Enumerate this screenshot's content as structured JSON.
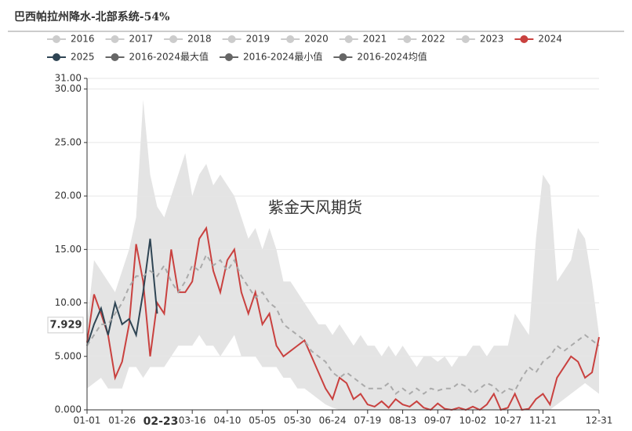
{
  "chart_data": {
    "type": "line",
    "title": "巴西帕拉州降水-北部系统-54%",
    "watermark": "紫金天风期货",
    "legend_inactive": [
      "2016",
      "2017",
      "2018",
      "2019",
      "2020",
      "2021",
      "2022",
      "2023"
    ],
    "legend_inactive_color": "#cccccc",
    "categories": [
      "01-01",
      null,
      null,
      null,
      null,
      "01-26",
      null,
      null,
      null,
      null,
      null,
      null,
      null,
      null,
      null,
      "03-16",
      null,
      null,
      null,
      null,
      "04-10",
      null,
      null,
      null,
      null,
      "05-05",
      null,
      null,
      null,
      null,
      "05-30",
      null,
      null,
      null,
      null,
      "06-24",
      null,
      null,
      null,
      null,
      "07-19",
      null,
      null,
      null,
      null,
      "08-13",
      null,
      null,
      null,
      null,
      "09-07",
      null,
      null,
      null,
      null,
      "10-02",
      null,
      null,
      null,
      null,
      "10-27",
      null,
      null,
      null,
      null,
      "11-21",
      null,
      null,
      null,
      null,
      null,
      null,
      null,
      "12-31"
    ],
    "series": [
      {
        "name": "2024",
        "color": "#c9413f",
        "values": [
          6.3,
          10.8,
          9,
          7,
          3,
          4.5,
          8,
          15.5,
          12,
          5,
          10,
          9,
          15,
          11,
          11,
          12,
          16,
          17,
          13,
          11,
          14,
          15,
          11,
          9,
          11,
          8,
          9,
          6,
          5,
          5.5,
          6,
          6.5,
          5,
          3.5,
          2,
          1,
          3,
          2.5,
          1,
          1.5,
          0.5,
          0.3,
          0.8,
          0.2,
          1,
          0.5,
          0.3,
          0.8,
          0.2,
          0,
          0.6,
          0.1,
          0,
          0.2,
          0,
          0.3,
          0,
          0.5,
          1.5,
          0,
          0.2,
          1.5,
          0,
          0.1,
          1,
          1.5,
          0.5,
          3,
          4,
          5,
          4.5,
          3,
          3.5,
          6.8
        ]
      },
      {
        "name": "2025",
        "color": "#2f4554",
        "values": [
          6,
          8,
          9.5,
          7,
          10,
          8,
          8.5,
          7,
          11,
          16,
          9,
          null,
          null,
          null,
          null,
          null,
          null,
          null,
          null,
          null,
          null,
          null,
          null,
          null,
          null,
          null,
          null,
          null,
          null,
          null,
          null,
          null,
          null,
          null,
          null,
          null,
          null,
          null,
          null,
          null,
          null,
          null,
          null,
          null,
          null,
          null,
          null,
          null,
          null,
          null,
          null,
          null,
          null,
          null,
          null,
          null,
          null,
          null,
          null,
          null,
          null,
          null,
          null,
          null,
          null,
          null,
          null,
          null,
          null,
          null,
          null,
          null,
          null,
          null
        ]
      },
      {
        "name": "2016-2024最大值",
        "color": "#666666",
        "fill": "#e4e4e4",
        "band": "upper",
        "values": [
          8,
          14,
          13,
          12,
          11,
          13,
          15,
          18,
          29,
          22,
          19,
          18,
          20,
          22,
          24,
          20,
          22,
          23,
          21,
          22,
          21,
          20,
          18,
          16,
          17,
          15,
          17,
          15,
          12,
          12,
          11,
          10,
          9,
          8,
          8,
          7,
          8,
          7,
          6,
          7,
          6,
          6,
          5,
          6,
          5,
          6,
          5,
          4,
          5,
          5,
          4.5,
          5,
          4,
          5,
          5,
          6,
          6,
          5,
          6,
          6,
          6,
          9,
          8,
          7,
          16,
          22,
          21,
          12,
          13,
          14,
          17,
          16,
          12,
          7
        ]
      },
      {
        "name": "2016-2024最小值",
        "color": "#666666",
        "band": "lower",
        "values": [
          2,
          2.5,
          3,
          2,
          2,
          2,
          4,
          4,
          3,
          4,
          4,
          4,
          5,
          6,
          6,
          6,
          7,
          6,
          6,
          5,
          6,
          7,
          5,
          5,
          5,
          4,
          4,
          4,
          3,
          3,
          2,
          2,
          1.5,
          1,
          0.5,
          0.2,
          0,
          0,
          0,
          0,
          0,
          0,
          0,
          0,
          0,
          0,
          0,
          0,
          0,
          0,
          0,
          0,
          0,
          0,
          0,
          0,
          0,
          0,
          0,
          0,
          0,
          0,
          0,
          0,
          0,
          0,
          0,
          0.5,
          1,
          1.5,
          2,
          2.5,
          2,
          1.5
        ]
      },
      {
        "name": "2016-2024均值",
        "color": "#666666",
        "line_color": "#aaaaaa",
        "dashed": true,
        "values": [
          6,
          7,
          8,
          8,
          9,
          10,
          11.5,
          12.5,
          12.5,
          13,
          12.5,
          13.5,
          12,
          11,
          12,
          13.5,
          13,
          14.5,
          13.5,
          14,
          13,
          14,
          12.5,
          11.5,
          10.5,
          11,
          10,
          9.5,
          8,
          7.5,
          7,
          6.5,
          5.5,
          5,
          4.5,
          3.5,
          3,
          3.5,
          3,
          2.5,
          2,
          2,
          2,
          2.5,
          1.5,
          2,
          1.5,
          2,
          1.5,
          2,
          1.8,
          2,
          2,
          2.5,
          2.2,
          1.5,
          2,
          2.5,
          2.2,
          1.5,
          2,
          1.8,
          3,
          4,
          3.5,
          4.5,
          5,
          6,
          5.5,
          6,
          6.5,
          7,
          6.5,
          6
        ]
      }
    ],
    "ylim": [
      0,
      31
    ],
    "yticks": [
      {
        "value": 0,
        "label": "0.000"
      },
      {
        "value": 5,
        "label": "5.000"
      },
      {
        "value": 10,
        "label": "10.00"
      },
      {
        "value": 15,
        "label": "15.00"
      },
      {
        "value": 20,
        "label": "20.00"
      },
      {
        "value": 25,
        "label": "25.00"
      },
      {
        "value": 30,
        "label": "30.00"
      },
      {
        "value": 31,
        "label": "31.00"
      }
    ],
    "grid": true,
    "crosshair": {
      "x_label": "02-23",
      "y": 7.929
    }
  }
}
